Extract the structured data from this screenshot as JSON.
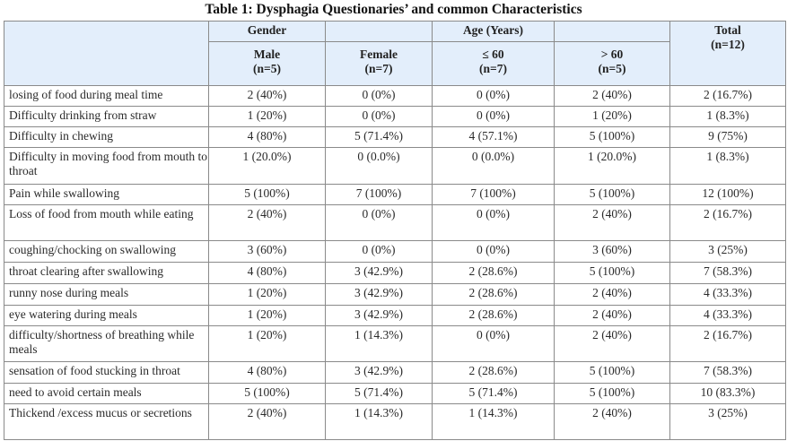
{
  "title": "Table 1: Dysphagia Questionaries’ and common Characteristics",
  "header": {
    "gender": "Gender",
    "age": "Age (Years)",
    "total": "Total",
    "total_n": "(n=12)",
    "male": "Male",
    "male_n": "(n=5)",
    "female": "Female",
    "female_n": "(n=7)",
    "le60": "≤ 60",
    "le60_n": "(n=7)",
    "gt60": "> 60",
    "gt60_n": "(n=5)"
  },
  "rows": [
    {
      "label": "losing of food during meal time",
      "male": "2 (40%)",
      "female": "0 (0%)",
      "le60": "0 (0%)",
      "gt60": "2 (40%)",
      "total": "2 (16.7%)"
    },
    {
      "label": "Difficulty drinking from straw",
      "male": "1 (20%)",
      "female": "0 (0%)",
      "le60": "0 (0%)",
      "gt60": "1 (20%)",
      "total": "1 (8.3%)"
    },
    {
      "label": "Difficulty in chewing",
      "male": "4 (80%)",
      "female": "5 (71.4%)",
      "le60": "4 (57.1%)",
      "gt60": "5 (100%)",
      "total": "9 (75%)"
    },
    {
      "label": "Difficulty in moving food from mouth to throat",
      "male": "1 (20.0%)",
      "female": "0 (0.0%)",
      "le60": "0 (0.0%)",
      "gt60": "1 (20.0%)",
      "total": "1 (8.3%)"
    },
    {
      "label": "Pain while swallowing",
      "male": "5 (100%)",
      "female": "7 (100%)",
      "le60": "7 (100%)",
      "gt60": "5 (100%)",
      "total": "12 (100%)"
    },
    {
      "label": "Loss of food from mouth while eating",
      "male": "2 (40%)",
      "female": "0 (0%)",
      "le60": "0 (0%)",
      "gt60": "2 (40%)",
      "total": "2 (16.7%)"
    },
    {
      "label": "coughing/chocking on swallowing",
      "male": "3 (60%)",
      "female": "0 (0%)",
      "le60": "0 (0%)",
      "gt60": "3 (60%)",
      "total": "3 (25%)"
    },
    {
      "label": "throat clearing after swallowing",
      "male": "4 (80%)",
      "female": "3 (42.9%)",
      "le60": "2 (28.6%)",
      "gt60": "5 (100%)",
      "total": "7 (58.3%)"
    },
    {
      "label": "runny nose during meals",
      "male": "1 (20%)",
      "female": "3 (42.9%)",
      "le60": "2 (28.6%)",
      "gt60": "2 (40%)",
      "total": "4 (33.3%)"
    },
    {
      "label": "eye watering during meals",
      "male": "1 (20%)",
      "female": "3 (42.9%)",
      "le60": "2 (28.6%)",
      "gt60": "2 (40%)",
      "total": "4 (33.3%)"
    },
    {
      "label": "difficulty/shortness of breathing while meals",
      "male": "1 (20%)",
      "female": "1 (14.3%)",
      "le60": "0 (0%)",
      "gt60": "2 (40%)",
      "total": "2 (16.7%)"
    },
    {
      "label": "sensation of food stucking in throat",
      "male": "4 (80%)",
      "female": "3 (42.9%)",
      "le60": "2 (28.6%)",
      "gt60": "5 (100%)",
      "total": "7 (58.3%)"
    },
    {
      "label": "need to avoid certain meals",
      "male": "5 (100%)",
      "female": "5 (71.4%)",
      "le60": "5 (71.4%)",
      "gt60": "5 (100%)",
      "total": "10 (83.3%)"
    },
    {
      "label": "Thickend /excess mucus or secretions",
      "male": "2 (40%)",
      "female": "1 (14.3%)",
      "le60": "1 (14.3%)",
      "gt60": "2 (40%)",
      "total": "3 (25%)"
    }
  ]
}
